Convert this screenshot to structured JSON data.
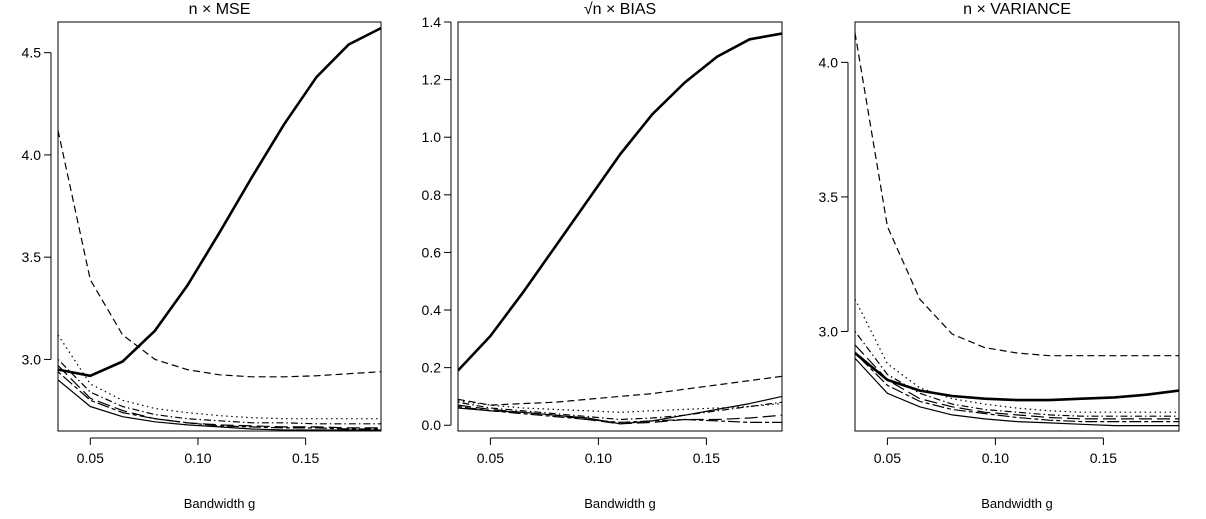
{
  "chart_data": [
    {
      "type": "line",
      "title": "n × MSE",
      "xlabel": "Bandwidth g",
      "ylabel": "",
      "xlim": [
        0.035,
        0.185
      ],
      "ylim": [
        2.65,
        4.65
      ],
      "xticks": [
        0.05,
        0.1,
        0.15
      ],
      "xtick_labels": [
        "0.05",
        "0.10",
        "0.15"
      ],
      "yticks": [
        3.0,
        3.5,
        4.0,
        4.5
      ],
      "ytick_labels": [
        "3.0",
        "3.5",
        "4.0",
        "4.5"
      ],
      "series": [
        {
          "x": [
            0.035,
            0.05,
            0.065,
            0.08,
            0.095,
            0.11,
            0.125,
            0.14,
            0.155,
            0.17,
            0.185
          ],
          "values": [
            2.95,
            2.92,
            2.99,
            3.14,
            3.36,
            3.62,
            3.89,
            4.15,
            4.38,
            4.54,
            4.62
          ],
          "style": "solid",
          "width": 2.6
        },
        {
          "x": [
            0.035,
            0.05,
            0.065,
            0.08,
            0.095,
            0.11,
            0.125,
            0.14,
            0.155,
            0.17,
            0.185
          ],
          "values": [
            4.12,
            3.39,
            3.12,
            3.0,
            2.95,
            2.925,
            2.915,
            2.915,
            2.92,
            2.93,
            2.94
          ],
          "style": "dashed",
          "width": 1.2
        },
        {
          "x": [
            0.035,
            0.05,
            0.065,
            0.08,
            0.095,
            0.11,
            0.125,
            0.14,
            0.155,
            0.17,
            0.185
          ],
          "values": [
            3.12,
            2.88,
            2.8,
            2.76,
            2.74,
            2.725,
            2.715,
            2.71,
            2.71,
            2.71,
            2.71
          ],
          "style": "dotted",
          "width": 1.2
        },
        {
          "x": [
            0.035,
            0.05,
            0.065,
            0.08,
            0.095,
            0.11,
            0.125,
            0.14,
            0.155,
            0.17,
            0.185
          ],
          "values": [
            3.0,
            2.84,
            2.77,
            2.73,
            2.71,
            2.7,
            2.69,
            2.69,
            2.685,
            2.685,
            2.685
          ],
          "style": "dotdash",
          "width": 1.2
        },
        {
          "x": [
            0.035,
            0.05,
            0.065,
            0.08,
            0.095,
            0.11,
            0.125,
            0.14,
            0.155,
            0.17,
            0.185
          ],
          "values": [
            2.97,
            2.81,
            2.75,
            2.71,
            2.69,
            2.68,
            2.675,
            2.67,
            2.67,
            2.665,
            2.665
          ],
          "style": "longdash",
          "width": 1.2
        },
        {
          "x": [
            0.035,
            0.05,
            0.065,
            0.08,
            0.095,
            0.11,
            0.125,
            0.14,
            0.155,
            0.17,
            0.185
          ],
          "values": [
            2.94,
            2.8,
            2.74,
            2.71,
            2.69,
            2.675,
            2.67,
            2.665,
            2.665,
            2.66,
            2.66
          ],
          "style": "twodash",
          "width": 1.2
        },
        {
          "x": [
            0.035,
            0.05,
            0.065,
            0.08,
            0.095,
            0.11,
            0.125,
            0.14,
            0.155,
            0.17,
            0.185
          ],
          "values": [
            2.9,
            2.77,
            2.72,
            2.695,
            2.68,
            2.67,
            2.66,
            2.655,
            2.655,
            2.655,
            2.655
          ],
          "style": "solid",
          "width": 1.2
        }
      ]
    },
    {
      "type": "line",
      "title": "√n × BIAS",
      "xlabel": "Bandwidth g",
      "ylabel": "",
      "xlim": [
        0.035,
        0.185
      ],
      "ylim": [
        -0.02,
        1.4
      ],
      "xticks": [
        0.05,
        0.1,
        0.15
      ],
      "xtick_labels": [
        "0.05",
        "0.10",
        "0.15"
      ],
      "yticks": [
        0.0,
        0.2,
        0.4,
        0.6,
        0.8,
        1.0,
        1.2,
        1.4
      ],
      "ytick_labels": [
        "0.0",
        "0.2",
        "0.4",
        "0.6",
        "0.8",
        "1.0",
        "1.2",
        "1.4"
      ],
      "series": [
        {
          "x": [
            0.035,
            0.05,
            0.065,
            0.08,
            0.095,
            0.11,
            0.125,
            0.14,
            0.155,
            0.17,
            0.185
          ],
          "values": [
            0.19,
            0.31,
            0.46,
            0.62,
            0.78,
            0.94,
            1.08,
            1.19,
            1.28,
            1.34,
            1.36
          ],
          "style": "solid",
          "width": 2.6
        },
        {
          "x": [
            0.035,
            0.05,
            0.065,
            0.08,
            0.095,
            0.11,
            0.125,
            0.14,
            0.155,
            0.17,
            0.185
          ],
          "values": [
            0.09,
            0.07,
            0.075,
            0.08,
            0.09,
            0.1,
            0.11,
            0.125,
            0.14,
            0.155,
            0.17
          ],
          "style": "dashed",
          "width": 1.2
        },
        {
          "x": [
            0.035,
            0.05,
            0.065,
            0.08,
            0.095,
            0.11,
            0.125,
            0.14,
            0.155,
            0.17,
            0.185
          ],
          "values": [
            0.085,
            0.07,
            0.06,
            0.055,
            0.05,
            0.045,
            0.05,
            0.055,
            0.06,
            0.065,
            0.075
          ],
          "style": "dotted",
          "width": 1.2
        },
        {
          "x": [
            0.035,
            0.05,
            0.065,
            0.08,
            0.095,
            0.11,
            0.125,
            0.14,
            0.155,
            0.17,
            0.185
          ],
          "values": [
            0.08,
            0.06,
            0.05,
            0.04,
            0.03,
            0.02,
            0.025,
            0.035,
            0.05,
            0.065,
            0.08
          ],
          "style": "dotdash",
          "width": 1.2
        },
        {
          "x": [
            0.035,
            0.05,
            0.065,
            0.08,
            0.095,
            0.11,
            0.125,
            0.14,
            0.155,
            0.17,
            0.185
          ],
          "values": [
            0.07,
            0.055,
            0.045,
            0.035,
            0.02,
            0.005,
            0.01,
            0.02,
            0.02,
            0.025,
            0.035
          ],
          "style": "longdash",
          "width": 1.2
        },
        {
          "x": [
            0.035,
            0.05,
            0.065,
            0.08,
            0.095,
            0.11,
            0.125,
            0.14,
            0.155,
            0.17,
            0.185
          ],
          "values": [
            0.065,
            0.05,
            0.04,
            0.03,
            0.02,
            0.01,
            0.015,
            0.02,
            0.015,
            0.01,
            0.01
          ],
          "style": "twodash",
          "width": 1.2
        },
        {
          "x": [
            0.035,
            0.05,
            0.065,
            0.08,
            0.095,
            0.11,
            0.125,
            0.14,
            0.155,
            0.17,
            0.185
          ],
          "values": [
            0.06,
            0.05,
            0.045,
            0.035,
            0.025,
            0.005,
            0.015,
            0.035,
            0.055,
            0.075,
            0.1
          ],
          "style": "solid",
          "width": 1.2
        }
      ]
    },
    {
      "type": "line",
      "title": "n × VARIANCE",
      "xlabel": "Bandwidth g",
      "ylabel": "",
      "xlim": [
        0.035,
        0.185
      ],
      "ylim": [
        2.63,
        4.15
      ],
      "xticks": [
        0.05,
        0.1,
        0.15
      ],
      "xtick_labels": [
        "0.05",
        "0.10",
        "0.15"
      ],
      "yticks": [
        3.0,
        3.5,
        4.0
      ],
      "ytick_labels": [
        "3.0",
        "3.5",
        "4.0"
      ],
      "series": [
        {
          "x": [
            0.035,
            0.05,
            0.065,
            0.08,
            0.095,
            0.11,
            0.125,
            0.14,
            0.155,
            0.17,
            0.185
          ],
          "values": [
            4.11,
            3.39,
            3.12,
            2.99,
            2.94,
            2.92,
            2.91,
            2.91,
            2.91,
            2.91,
            2.91
          ],
          "style": "dashed",
          "width": 1.2
        },
        {
          "x": [
            0.035,
            0.05,
            0.065,
            0.08,
            0.095,
            0.11,
            0.125,
            0.14,
            0.155,
            0.17,
            0.185
          ],
          "values": [
            3.12,
            2.88,
            2.79,
            2.75,
            2.73,
            2.715,
            2.705,
            2.7,
            2.7,
            2.7,
            2.7
          ],
          "style": "dotted",
          "width": 1.2
        },
        {
          "x": [
            0.035,
            0.05,
            0.065,
            0.08,
            0.095,
            0.11,
            0.125,
            0.14,
            0.155,
            0.17,
            0.185
          ],
          "values": [
            3.0,
            2.84,
            2.77,
            2.73,
            2.71,
            2.7,
            2.69,
            2.685,
            2.685,
            2.685,
            2.685
          ],
          "style": "dotdash",
          "width": 1.2
        },
        {
          "x": [
            0.035,
            0.05,
            0.065,
            0.08,
            0.095,
            0.11,
            0.125,
            0.14,
            0.155,
            0.17,
            0.185
          ],
          "values": [
            2.95,
            2.82,
            2.75,
            2.72,
            2.7,
            2.69,
            2.68,
            2.675,
            2.675,
            2.675,
            2.675
          ],
          "style": "longdash",
          "width": 1.2
        },
        {
          "x": [
            0.035,
            0.05,
            0.065,
            0.08,
            0.095,
            0.11,
            0.125,
            0.14,
            0.155,
            0.17,
            0.185
          ],
          "values": [
            2.92,
            2.8,
            2.74,
            2.71,
            2.695,
            2.68,
            2.67,
            2.665,
            2.665,
            2.665,
            2.665
          ],
          "style": "twodash",
          "width": 1.2
        },
        {
          "x": [
            0.035,
            0.05,
            0.065,
            0.08,
            0.095,
            0.11,
            0.125,
            0.14,
            0.155,
            0.17,
            0.185
          ],
          "values": [
            2.9,
            2.77,
            2.72,
            2.69,
            2.675,
            2.665,
            2.66,
            2.655,
            2.65,
            2.65,
            2.65
          ],
          "style": "solid",
          "width": 1.2
        },
        {
          "x": [
            0.035,
            0.05,
            0.065,
            0.08,
            0.095,
            0.11,
            0.125,
            0.14,
            0.155,
            0.17,
            0.185
          ],
          "values": [
            2.92,
            2.82,
            2.78,
            2.76,
            2.75,
            2.745,
            2.745,
            2.75,
            2.755,
            2.765,
            2.78
          ],
          "style": "solid",
          "width": 2.6
        }
      ]
    }
  ]
}
